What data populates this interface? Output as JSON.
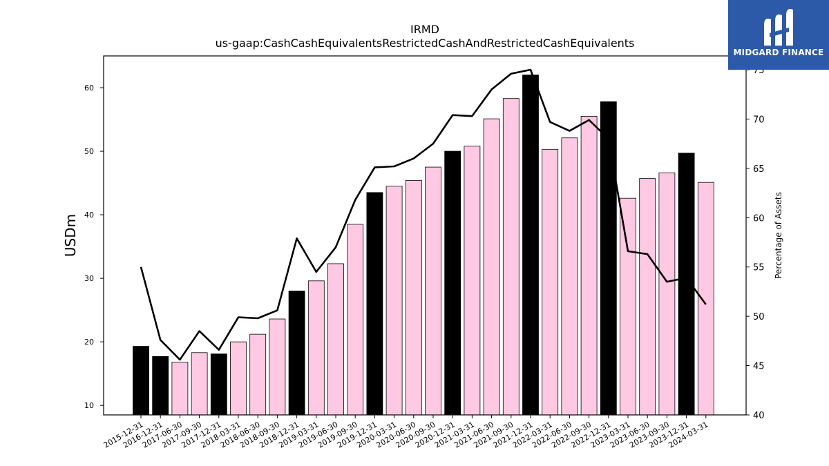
{
  "chart_data": {
    "type": "bar",
    "title": "IRMD",
    "subtitle": "us-gaap:CashCashEquivalentsRestrictedCashAndRestrictedCashEquivalents",
    "ylabel": "USDm",
    "y2label": "Percentage of Assets",
    "ylim": [
      8.5,
      65
    ],
    "y2lim": [
      40,
      76.4
    ],
    "yticks": [
      10,
      20,
      30,
      40,
      50,
      60
    ],
    "y2ticks": [
      40,
      45,
      50,
      55,
      60,
      65,
      70,
      75
    ],
    "categories": [
      "2015-12-31",
      "2016-12-31",
      "2017-06-30",
      "2017-09-30",
      "2017-12-31",
      "2018-03-31",
      "2018-06-30",
      "2018-09-30",
      "2018-12-31",
      "2019-03-31",
      "2019-06-30",
      "2019-09-30",
      "2019-12-31",
      "2020-03-31",
      "2020-06-30",
      "2020-09-30",
      "2020-12-31",
      "2021-03-31",
      "2021-06-30",
      "2021-09-30",
      "2021-12-31",
      "2022-03-31",
      "2022-06-30",
      "2022-09-30",
      "2022-12-31",
      "2023-03-31",
      "2023-06-30",
      "2023-09-30",
      "2023-12-31",
      "2024-03-31"
    ],
    "series": [
      {
        "kind": "bar",
        "values": [
          19.3,
          17.7,
          16.8,
          18.3,
          18.1,
          20.0,
          21.2,
          23.6,
          28.0,
          29.6,
          32.3,
          38.5,
          43.5,
          44.5,
          45.4,
          47.5,
          50.0,
          50.8,
          55.1,
          58.3,
          62.0,
          50.3,
          52.1,
          55.5,
          57.8,
          42.6,
          45.7,
          46.6,
          49.7,
          45.1
        ],
        "highlight": [
          true,
          true,
          false,
          false,
          true,
          false,
          false,
          false,
          true,
          false,
          false,
          false,
          true,
          false,
          false,
          false,
          true,
          false,
          false,
          false,
          true,
          false,
          false,
          false,
          true,
          false,
          false,
          false,
          true,
          false
        ]
      },
      {
        "kind": "line",
        "axis": "right",
        "values": [
          55.0,
          47.6,
          45.6,
          48.5,
          46.6,
          49.9,
          49.8,
          50.6,
          57.9,
          54.5,
          57.0,
          61.8,
          65.1,
          65.2,
          66.0,
          67.5,
          70.4,
          70.3,
          73.0,
          74.6,
          75.0,
          69.7,
          68.8,
          69.9,
          68.0,
          56.6,
          56.3,
          53.5,
          53.9,
          51.2
        ]
      }
    ],
    "colors": {
      "highlight_bar": "#000000",
      "bar": "#ffc8e3",
      "line": "#000000"
    }
  },
  "logo": {
    "text": "MIDGARD FINANCE",
    "background": "#2c5aa8"
  }
}
